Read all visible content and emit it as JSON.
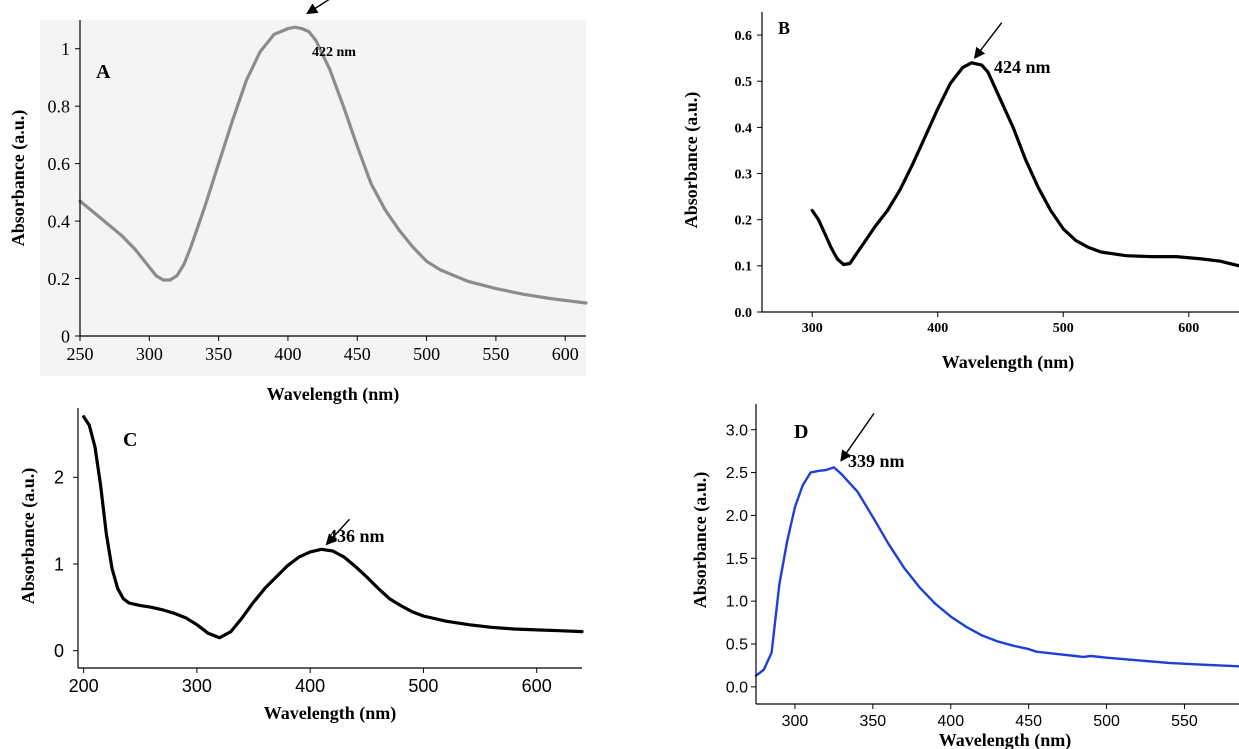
{
  "chart_data": [
    {
      "panel_label": "A",
      "type": "line",
      "xlabel": "Wavelength (nm)",
      "ylabel": "Absorbance (a.u.)",
      "xlim": [
        250,
        615
      ],
      "ylim": [
        0,
        1.1
      ],
      "xticks": [
        250,
        300,
        350,
        400,
        450,
        500,
        550,
        600
      ],
      "yticks": [
        0,
        0.2,
        0.4,
        0.6,
        0.8,
        1
      ],
      "ytick_labels": [
        "0",
        "0.2",
        "0.4",
        "0.6",
        "0.8",
        "1"
      ],
      "grid": false,
      "annotation": {
        "text": "422 nm",
        "x": 409,
        "y": 1.07
      },
      "series": [
        {
          "color": "#8c8c8c",
          "x": [
            250,
            260,
            270,
            280,
            290,
            300,
            305,
            310,
            315,
            320,
            325,
            330,
            340,
            350,
            360,
            370,
            380,
            390,
            400,
            405,
            410,
            415,
            420,
            430,
            440,
            450,
            460,
            470,
            480,
            490,
            500,
            510,
            520,
            530,
            550,
            570,
            590,
            615
          ],
          "y": [
            0.47,
            0.43,
            0.39,
            0.35,
            0.3,
            0.24,
            0.21,
            0.195,
            0.195,
            0.21,
            0.25,
            0.31,
            0.45,
            0.6,
            0.75,
            0.89,
            0.99,
            1.05,
            1.07,
            1.075,
            1.07,
            1.06,
            1.03,
            0.93,
            0.8,
            0.66,
            0.53,
            0.44,
            0.37,
            0.31,
            0.26,
            0.23,
            0.21,
            0.19,
            0.165,
            0.145,
            0.13,
            0.115
          ]
        }
      ]
    },
    {
      "panel_label": "B",
      "type": "line",
      "xlabel": "Wavelength (nm)",
      "ylabel": "Absorbance (a.u.)",
      "xlim": [
        260,
        640
      ],
      "ylim": [
        0,
        0.65
      ],
      "xticks": [
        300,
        400,
        500,
        600
      ],
      "yticks": [
        0.0,
        0.1,
        0.2,
        0.3,
        0.4,
        0.5,
        0.6
      ],
      "ytick_labels": [
        "0.0",
        "0.1",
        "0.2",
        "0.3",
        "0.4",
        "0.5",
        "0.6"
      ],
      "grid": false,
      "annotation": {
        "text": "424 nm",
        "x": 427,
        "y": 0.54
      },
      "series": [
        {
          "color": "#000000",
          "x": [
            300,
            305,
            310,
            315,
            320,
            325,
            330,
            335,
            340,
            350,
            360,
            370,
            380,
            390,
            400,
            410,
            420,
            427,
            435,
            440,
            450,
            460,
            470,
            480,
            490,
            500,
            510,
            520,
            530,
            550,
            570,
            590,
            610,
            625,
            640
          ],
          "y": [
            0.22,
            0.2,
            0.17,
            0.14,
            0.115,
            0.103,
            0.105,
            0.125,
            0.145,
            0.185,
            0.22,
            0.265,
            0.32,
            0.38,
            0.44,
            0.495,
            0.53,
            0.54,
            0.535,
            0.52,
            0.46,
            0.4,
            0.33,
            0.27,
            0.22,
            0.18,
            0.155,
            0.14,
            0.13,
            0.122,
            0.12,
            0.12,
            0.115,
            0.11,
            0.1
          ]
        }
      ]
    },
    {
      "panel_label": "C",
      "type": "line",
      "xlabel": "Wavelength (nm)",
      "ylabel": "Absorbance (a.u.)",
      "xlim": [
        195,
        640
      ],
      "ylim": [
        -0.2,
        2.8
      ],
      "xticks": [
        200,
        300,
        400,
        500,
        600
      ],
      "yticks": [
        0,
        1,
        2
      ],
      "ytick_labels": [
        "0",
        "1",
        "2"
      ],
      "grid": false,
      "annotation": {
        "text": "436 nm",
        "x": 410,
        "y": 1.17
      },
      "series": [
        {
          "color": "#000000",
          "x": [
            200,
            205,
            210,
            215,
            220,
            225,
            230,
            235,
            240,
            250,
            260,
            270,
            280,
            290,
            300,
            310,
            320,
            330,
            340,
            350,
            360,
            370,
            380,
            390,
            400,
            410,
            420,
            430,
            440,
            450,
            460,
            470,
            480,
            490,
            500,
            520,
            540,
            560,
            580,
            600,
            620,
            640
          ],
          "y": [
            2.7,
            2.6,
            2.35,
            1.9,
            1.35,
            0.95,
            0.72,
            0.6,
            0.55,
            0.52,
            0.5,
            0.47,
            0.43,
            0.38,
            0.3,
            0.2,
            0.15,
            0.22,
            0.38,
            0.56,
            0.72,
            0.85,
            0.98,
            1.08,
            1.14,
            1.17,
            1.15,
            1.08,
            0.97,
            0.85,
            0.72,
            0.6,
            0.52,
            0.45,
            0.4,
            0.34,
            0.3,
            0.27,
            0.25,
            0.24,
            0.23,
            0.22
          ]
        }
      ]
    },
    {
      "panel_label": "D",
      "type": "line",
      "xlabel": "Wavelength (nm)",
      "ylabel": "Absorbance (a.u.)",
      "xlim": [
        275,
        585
      ],
      "ylim": [
        -0.2,
        3.3
      ],
      "xticks": [
        300,
        350,
        400,
        450,
        500,
        550
      ],
      "yticks": [
        0.0,
        0.5,
        1.0,
        1.5,
        2.0,
        2.5,
        3.0
      ],
      "ytick_labels": [
        "0.0",
        "0.5",
        "1.0",
        "1.5",
        "2.0",
        "2.5",
        "3.0"
      ],
      "grid": false,
      "annotation": {
        "text": "339 nm",
        "x": 325,
        "y": 2.56
      },
      "series": [
        {
          "color": "#1f3fd6",
          "x": [
            275,
            280,
            285,
            290,
            295,
            300,
            305,
            310,
            315,
            320,
            325,
            330,
            335,
            340,
            350,
            360,
            370,
            380,
            390,
            400,
            410,
            418,
            420,
            430,
            440,
            450,
            455,
            460,
            470,
            480,
            485,
            490,
            500,
            520,
            540,
            560,
            585
          ],
          "y": [
            0.13,
            0.2,
            0.4,
            1.2,
            1.7,
            2.1,
            2.35,
            2.5,
            2.52,
            2.53,
            2.56,
            2.48,
            2.38,
            2.28,
            1.98,
            1.67,
            1.39,
            1.16,
            0.97,
            0.82,
            0.7,
            0.62,
            0.6,
            0.53,
            0.48,
            0.44,
            0.41,
            0.4,
            0.38,
            0.36,
            0.35,
            0.36,
            0.34,
            0.31,
            0.28,
            0.26,
            0.24
          ]
        }
      ]
    }
  ]
}
